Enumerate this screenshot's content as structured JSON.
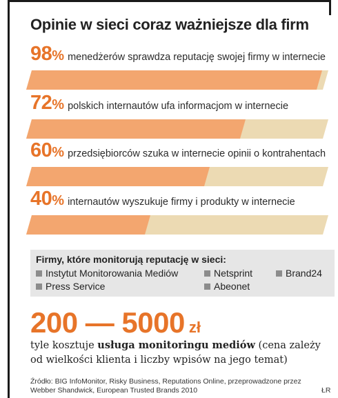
{
  "title": "Opinie w sieci coraz ważniejsze dla firm",
  "colors": {
    "accent": "#e77429",
    "bar_fill": "#f3a66f",
    "bar_remainder": "#ecdab3",
    "box_bg": "#e6e6e6"
  },
  "chart_data": {
    "type": "bar",
    "orientation": "horizontal",
    "title": "Opinie w sieci coraz ważniejsze dla firm",
    "categories": [
      "menedżerów sprawdza reputację swojej firmy w internecie",
      "polskich internautów ufa informacjom w internecie",
      "przedsiębiorców szuka w internecie opinii o kontrahentach",
      "internautów wyszukuje firmy i produkty w internecie"
    ],
    "values": [
      98,
      72,
      60,
      40
    ],
    "value_labels": [
      "98",
      "72",
      "60",
      "40"
    ],
    "unit": "%",
    "xlim": [
      0,
      100
    ]
  },
  "monitor": {
    "title": "Firmy, które monitorują reputację w sieci:",
    "companies": [
      "Instytut Monitorowania Mediów",
      "Netsprint",
      "Brand24",
      "Press Service",
      "Abeonet"
    ]
  },
  "price": {
    "value": "200 — 5000",
    "unit": "zł",
    "desc_prefix": "tyle kosztuje ",
    "desc_bold": "usługa monitoringu mediów",
    "desc_suffix": " (cena zależy od wielkości klienta i liczby wpisów na jego temat)"
  },
  "source": "Źródło: BIG InfoMonitor, Risky Business, Reputations Online, przeprowadzone przez Webber Shandwick, European Trusted Brands 2010",
  "author": "ŁR"
}
